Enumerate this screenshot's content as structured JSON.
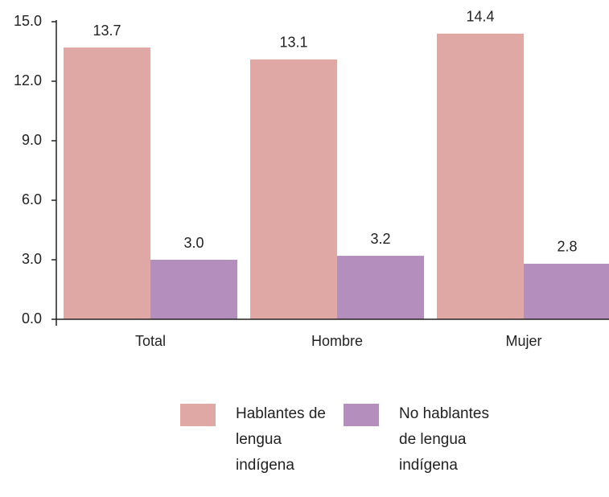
{
  "chart_data": {
    "type": "bar",
    "categories": [
      "Total",
      "Hombre",
      "Mujer"
    ],
    "series": [
      {
        "name": "Hablantes de lengua indígena",
        "color": "#e0a8a4",
        "values": [
          13.7,
          13.1,
          14.4
        ],
        "value_labels": [
          "13.7",
          "13.1",
          "14.4"
        ]
      },
      {
        "name": "No hablantes de lengua indígena",
        "color": "#b48fbd",
        "values": [
          3.0,
          3.2,
          2.8
        ],
        "value_labels": [
          "3.0",
          "3.2",
          "2.8"
        ]
      }
    ],
    "ylim": [
      0,
      15
    ],
    "yticks": [
      {
        "value": 0,
        "label": "0.0"
      },
      {
        "value": 3,
        "label": "3.0"
      },
      {
        "value": 6,
        "label": "6.0"
      },
      {
        "value": 9,
        "label": "9.0"
      },
      {
        "value": 12,
        "label": "12.0"
      },
      {
        "value": 15,
        "label": "15.0"
      }
    ],
    "legend": "bottom"
  }
}
